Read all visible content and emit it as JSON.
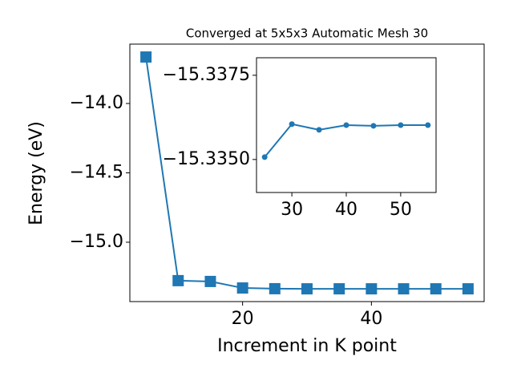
{
  "chart_data": [
    {
      "type": "line",
      "title": "Converged at 5x5x3 Automatic Mesh 30",
      "x_label": "Increment in K point",
      "y_label": "Energy (eV)",
      "marker": "square",
      "x": [
        5,
        10,
        15,
        20,
        25,
        30,
        35,
        40,
        45,
        50,
        55
      ],
      "series": [
        {
          "color": "#1f77b4",
          "values": [
            -13.665,
            -15.277,
            -15.283,
            -15.33,
            -15.33507,
            -15.33605,
            -15.33588,
            -15.33602,
            -15.336,
            -15.33602,
            -15.33602
          ]
        }
      ],
      "xlim": [
        2.5,
        57.5
      ],
      "xticks": [
        20,
        40
      ],
      "ylim": [
        -15.428,
        -13.572
      ],
      "yticks": [
        {
          "value": -15.0,
          "label": "−15.0"
        },
        {
          "value": -14.5,
          "label": "−14.5"
        },
        {
          "value": -14.0,
          "label": "−14.0"
        }
      ]
    },
    {
      "type": "line",
      "marker": "circle",
      "x": [
        25,
        30,
        35,
        40,
        45,
        50,
        55
      ],
      "series": [
        {
          "color": "#1f77b4",
          "values": [
            -15.33507,
            -15.33605,
            -15.33588,
            -15.33602,
            -15.336,
            -15.33602,
            -15.33602
          ]
        }
      ],
      "xlim": [
        23.5,
        56.5
      ],
      "xticks": [
        30,
        40,
        50
      ],
      "ylim": [
        -15.33402,
        -15.33802
      ],
      "yticks": [
        {
          "value": -15.335,
          "label": "−15.3350"
        },
        {
          "value": -15.3375,
          "label": "−15.3375"
        }
      ]
    }
  ]
}
